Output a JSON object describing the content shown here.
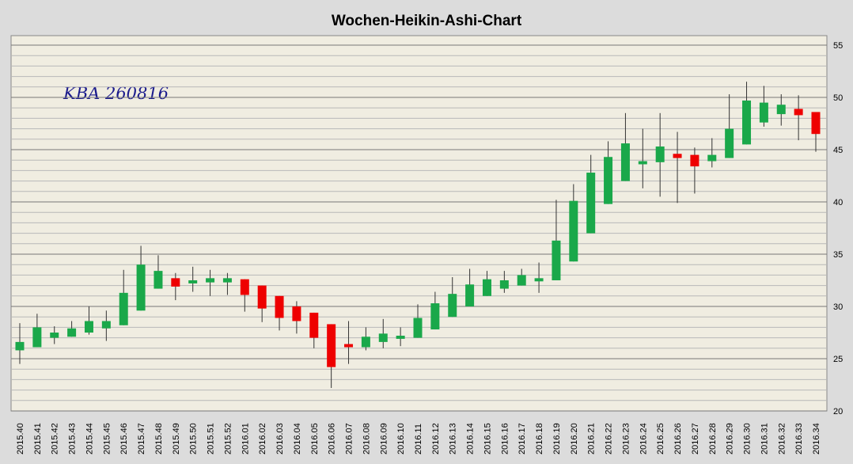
{
  "chart_data": {
    "type": "candlestick",
    "title": "Wochen-Heikin-Ashi-Chart",
    "annotation": "KBA 260816",
    "categories": [
      "2015.40",
      "2015.41",
      "2015.42",
      "2015.43",
      "2015.44",
      "2015.45",
      "2015.46",
      "2015.47",
      "2015.48",
      "2015.49",
      "2015.50",
      "2015.51",
      "2015.52",
      "2016.01",
      "2016.02",
      "2016.03",
      "2016.04",
      "2016.05",
      "2016.06",
      "2016.07",
      "2016.08",
      "2016.09",
      "2016.10",
      "2016.11",
      "2016.12",
      "2016.13",
      "2016.14",
      "2016.15",
      "2016.16",
      "2016.17",
      "2016.18",
      "2016.19",
      "2016.20",
      "2016.21",
      "2016.22",
      "2016.23",
      "2016.24",
      "2016.25",
      "2016.26",
      "2016.27",
      "2016.28",
      "2016.29",
      "2016.30",
      "2016.31",
      "2016.32",
      "2016.33",
      "2016.34"
    ],
    "open": [
      25.8,
      26.1,
      27.0,
      27.1,
      27.5,
      27.9,
      28.2,
      29.6,
      31.7,
      32.7,
      32.2,
      32.3,
      32.3,
      32.6,
      32.0,
      31.0,
      30.0,
      29.4,
      28.3,
      26.4,
      26.1,
      26.6,
      26.9,
      27.0,
      27.8,
      29.0,
      30.0,
      31.0,
      31.7,
      32.0,
      32.4,
      32.5,
      34.3,
      37.0,
      39.8,
      42.0,
      43.6,
      43.8,
      44.6,
      44.5,
      43.9,
      44.2,
      45.5,
      47.6,
      48.4,
      48.9,
      48.6
    ],
    "high": [
      28.4,
      29.3,
      28.1,
      28.6,
      30.0,
      29.6,
      33.5,
      35.8,
      34.9,
      33.2,
      33.8,
      33.5,
      33.2,
      32.6,
      32.0,
      31.0,
      30.5,
      29.4,
      28.3,
      28.6,
      28.0,
      28.8,
      28.0,
      30.2,
      31.4,
      32.8,
      33.6,
      33.4,
      33.4,
      33.6,
      34.2,
      40.2,
      41.7,
      44.5,
      45.8,
      48.5,
      47.0,
      48.5,
      46.7,
      45.2,
      46.1,
      50.3,
      51.5,
      51.1,
      50.3,
      50.2,
      48.6
    ],
    "low": [
      24.5,
      26.1,
      26.4,
      27.1,
      27.3,
      26.7,
      28.2,
      29.6,
      31.7,
      30.6,
      31.4,
      31.0,
      31.1,
      29.5,
      28.5,
      27.7,
      27.4,
      26.0,
      22.2,
      24.5,
      25.8,
      26.0,
      26.2,
      27.0,
      27.8,
      29.0,
      30.0,
      31.0,
      31.3,
      32.0,
      31.3,
      32.5,
      34.3,
      37.0,
      39.8,
      42.0,
      41.3,
      40.5,
      39.9,
      40.8,
      43.3,
      44.2,
      45.5,
      47.2,
      47.3,
      45.9,
      44.8
    ],
    "close": [
      26.6,
      28.0,
      27.5,
      27.9,
      28.6,
      28.6,
      31.3,
      34.0,
      33.4,
      31.9,
      32.5,
      32.7,
      32.7,
      31.1,
      29.8,
      28.9,
      28.6,
      27.0,
      24.2,
      26.1,
      27.1,
      27.4,
      27.2,
      28.9,
      30.3,
      31.2,
      32.1,
      32.6,
      32.5,
      33.0,
      32.7,
      36.3,
      40.1,
      42.8,
      44.3,
      45.6,
      43.9,
      45.3,
      44.2,
      43.4,
      44.5,
      47.0,
      49.7,
      49.5,
      49.3,
      48.3,
      46.5
    ],
    "up_color": "#1aa84a",
    "down_color": "#ee0000",
    "ylim": [
      20,
      55
    ],
    "yticks": [
      20,
      25,
      30,
      35,
      40,
      45,
      50,
      55
    ],
    "minor_yticks": [
      21,
      22,
      23,
      24,
      26,
      27,
      28,
      29,
      31,
      32,
      33,
      34,
      36,
      37,
      38,
      39,
      41,
      42,
      43,
      44,
      46,
      47,
      48,
      49,
      51,
      52,
      53,
      54
    ],
    "grid": true
  }
}
